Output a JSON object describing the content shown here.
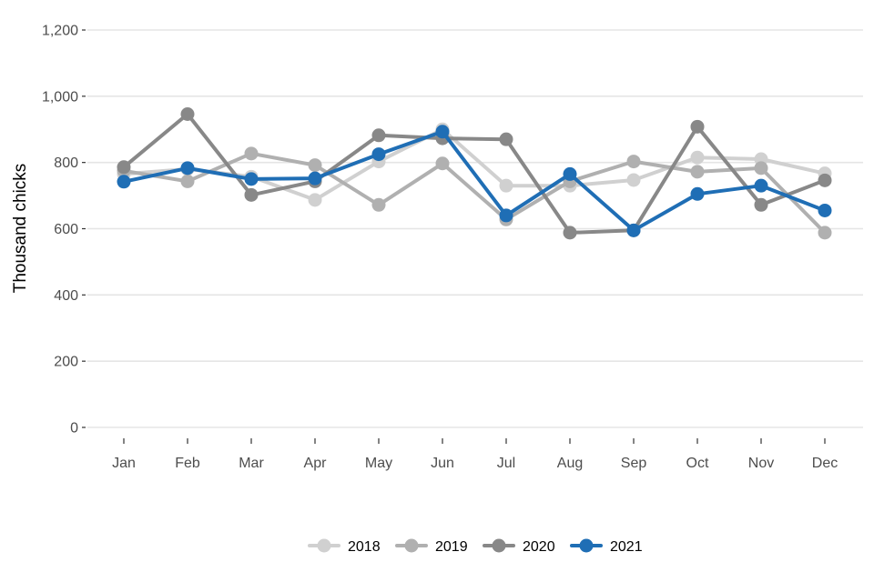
{
  "chart_data": {
    "type": "line",
    "title": "",
    "xlabel": "",
    "ylabel": "Thousand chicks",
    "categories": [
      "Jan",
      "Feb",
      "Mar",
      "Apr",
      "May",
      "Jun",
      "Jul",
      "Aug",
      "Sep",
      "Oct",
      "Nov",
      "Dec"
    ],
    "ylim": [
      0,
      1200
    ],
    "yticks": [
      0,
      200,
      400,
      600,
      800,
      1000,
      1200
    ],
    "ytick_labels": [
      "0",
      "200",
      "400",
      "600",
      "800",
      "1,000",
      "1,200"
    ],
    "grid": true,
    "legend_position": "bottom",
    "series": [
      {
        "name": "2018",
        "color": "#d0d0d0",
        "values": [
          765,
          780,
          757,
          687,
          803,
          900,
          730,
          730,
          747,
          815,
          810,
          767
        ]
      },
      {
        "name": "2019",
        "color": "#b0b0b0",
        "values": [
          775,
          743,
          827,
          792,
          672,
          797,
          628,
          743,
          803,
          772,
          783,
          588
        ]
      },
      {
        "name": "2020",
        "color": "#888888",
        "values": [
          786,
          946,
          702,
          743,
          882,
          873,
          870,
          588,
          595,
          908,
          672,
          746
        ]
      },
      {
        "name": "2021",
        "color": "#1f6eb5",
        "values": [
          742,
          783,
          750,
          752,
          825,
          893,
          640,
          765,
          595,
          705,
          730,
          655
        ]
      }
    ]
  }
}
